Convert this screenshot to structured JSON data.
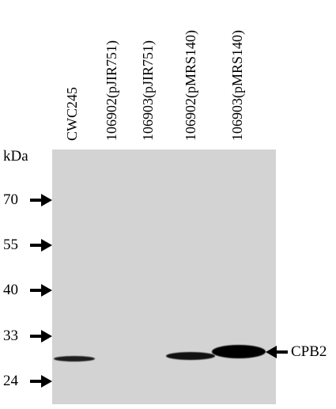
{
  "lanes": [
    "CWC245",
    "106902(pJIR751)",
    "106903(pJIR751)",
    "106902(pMRS140)",
    "106903(pMRS140)"
  ],
  "unit_label": "kDa",
  "markers": [
    "70",
    "55",
    "40",
    "33",
    "24"
  ],
  "band_label": "CPB2"
}
